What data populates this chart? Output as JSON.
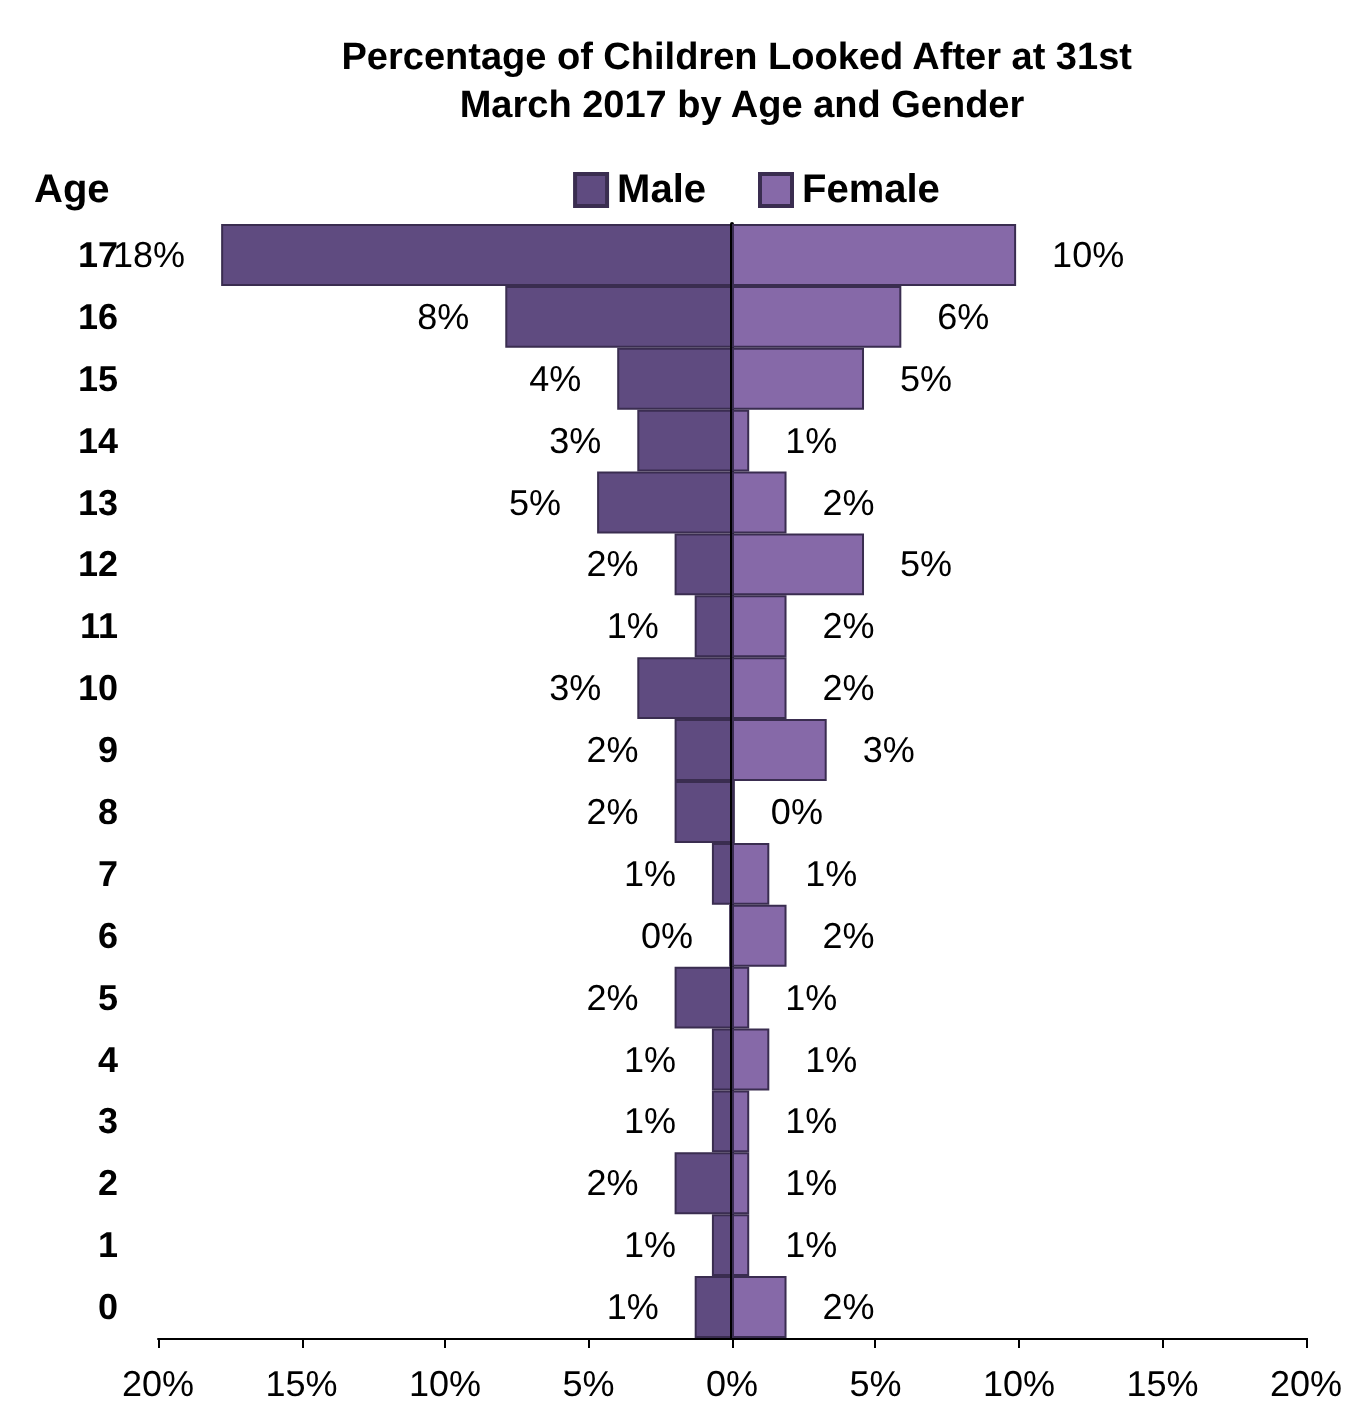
{
  "chart_data": [
    {
      "type": "bar",
      "orientation": "horizontal",
      "title": "Percentage of Children Looked After at 31st March 2017 by Age and Gender",
      "ylabel": "Age",
      "categories": [
        "17",
        "16",
        "15",
        "14",
        "13",
        "12",
        "11",
        "10",
        "9",
        "8",
        "7",
        "6",
        "5",
        "4",
        "3",
        "2",
        "1",
        "0"
      ],
      "series": [
        {
          "name": "Male",
          "color": "#5f4b80",
          "values": [
            17.8,
            7.9,
            4.0,
            3.3,
            4.7,
            2.0,
            1.3,
            3.3,
            2.0,
            2.0,
            0.7,
            0.1,
            2.0,
            0.7,
            0.7,
            2.0,
            0.7,
            1.3
          ],
          "value_labels": [
            "18%",
            "8%",
            "4%",
            "3%",
            "5%",
            "2%",
            "1%",
            "3%",
            "2%",
            "2%",
            "1%",
            "0%",
            "2%",
            "1%",
            "1%",
            "2%",
            "1%",
            "1%"
          ]
        }
      ],
      "xlim": [
        20,
        0
      ],
      "xticks": [
        {
          "value": 20,
          "label": "20%"
        },
        {
          "value": 15,
          "label": "15%"
        },
        {
          "value": 10,
          "label": "10%"
        },
        {
          "value": 5,
          "label": "5%"
        },
        {
          "value": 0,
          "label": null
        }
      ],
      "grid": false,
      "legend": "top"
    },
    {
      "type": "bar",
      "orientation": "horizontal",
      "categories": [
        "17",
        "16",
        "15",
        "14",
        "13",
        "12",
        "11",
        "10",
        "9",
        "8",
        "7",
        "6",
        "5",
        "4",
        "3",
        "2",
        "1",
        "0"
      ],
      "series": [
        {
          "name": "Female",
          "color": "#8669a8",
          "values": [
            9.9,
            5.9,
            4.6,
            0.6,
            1.9,
            4.6,
            1.9,
            1.9,
            3.3,
            0.1,
            1.3,
            1.9,
            0.6,
            1.3,
            0.6,
            0.6,
            0.6,
            1.9
          ],
          "value_labels": [
            "10%",
            "6%",
            "5%",
            "1%",
            "2%",
            "5%",
            "2%",
            "2%",
            "3%",
            "0%",
            "1%",
            "2%",
            "1%",
            "1%",
            "1%",
            "1%",
            "1%",
            "2%"
          ]
        }
      ],
      "xlim": [
        0,
        20
      ],
      "xticks": [
        {
          "value": 0,
          "label": "0%"
        },
        {
          "value": 5,
          "label": "5%"
        },
        {
          "value": 10,
          "label": "10%"
        },
        {
          "value": 15,
          "label": "15%"
        },
        {
          "value": 20,
          "label": "20%"
        }
      ],
      "grid": false,
      "legend": "top",
      "tick_labels": "x"
    }
  ]
}
